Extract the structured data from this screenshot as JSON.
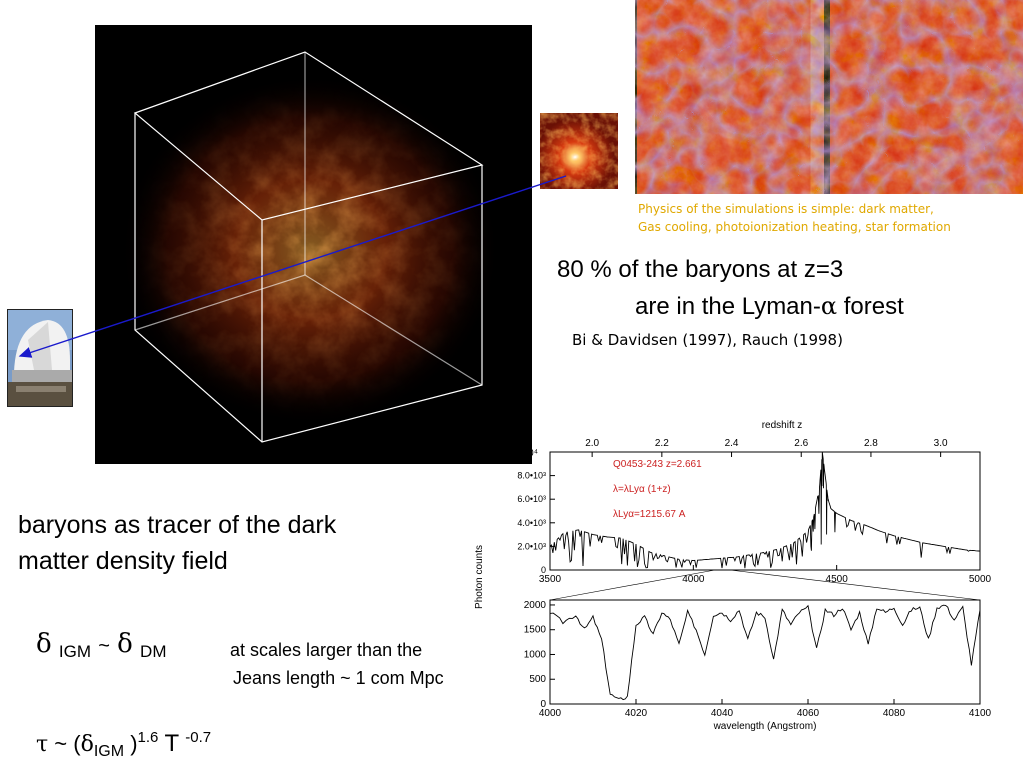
{
  "captions": {
    "simulation_caption_line1": "Physics of the simulations is simple: dark matter,",
    "simulation_caption_line2": "Gas cooling, photoionization heating, star formation",
    "baryons_line1": "80 % of the baryons at z=3",
    "baryons_line2_pre": "are in the Lyman-",
    "baryons_line2_alpha": "α",
    "baryons_line2_post": " forest",
    "reference": "Bi & Davidsen (1997), Rauch (1998)",
    "tracer_line1": "baryons as tracer of the dark",
    "tracer_line2": "matter density field",
    "scales_line1": "at scales larger than the",
    "scales_line2": "Jeans length ~ 1 com Mpc"
  },
  "equations": {
    "delta": "δ",
    "igm": "IGM",
    "tilde": "~",
    "dm": "DM",
    "tau": "τ",
    "tau_rel": "~ (",
    "close_paren": ")",
    "exp_16": "1.6",
    "T": "T",
    "exp_neg07": "-0.7"
  },
  "colors": {
    "accent_caption": "#e0a800",
    "arrow": "#1a1acc",
    "spectrum_red": "#cc2222"
  },
  "chart_data": [
    {
      "type": "line",
      "title": "",
      "top_axis_label": "redshift  z",
      "top_ticks": [
        "2.0",
        "2.2",
        "2.4",
        "2.6",
        "2.8",
        "3.0"
      ],
      "xlabel": "",
      "ylabel": "Photon counts",
      "x_ticks": [
        "3500",
        "4000",
        "4500",
        "5000"
      ],
      "y_ticks": [
        "0",
        "2.0•10³",
        "4.0•10³",
        "6.0•10³",
        "8.0•10³",
        "1.0•10⁴"
      ],
      "y_top_label": "10⁴",
      "xlim": [
        3500,
        5000
      ],
      "ylim": [
        0,
        10000
      ],
      "annotations": [
        "Q0453-243   z=2.661",
        "λ=λLyα (1+z)",
        "λLyα=1215.67 A"
      ],
      "series": [
        {
          "x": [
            3500,
            3550,
            3600,
            3650,
            3700,
            3750,
            3800,
            3850,
            3900,
            3950,
            4000,
            4050,
            4100,
            4150,
            4200,
            4250,
            4300,
            4350,
            4400,
            4420,
            4440,
            4450,
            4460,
            4470,
            4480,
            4500,
            4550,
            4600,
            4650,
            4700,
            4750,
            4800,
            4850,
            4900,
            4950,
            5000
          ],
          "values": [
            2000,
            3200,
            3400,
            3000,
            2800,
            2700,
            2200,
            1500,
            1200,
            900,
            800,
            900,
            1000,
            1100,
            1300,
            1500,
            1800,
            2300,
            3300,
            4500,
            7000,
            10000,
            8000,
            6000,
            5200,
            4800,
            4200,
            3800,
            3300,
            2900,
            2600,
            2300,
            2100,
            1900,
            1700,
            1600
          ]
        }
      ]
    },
    {
      "type": "line",
      "title": "",
      "xlabel": "wavelength (Angstrom)",
      "ylabel": "",
      "x_ticks": [
        "4000",
        "4020",
        "4040",
        "4060",
        "4080",
        "4100"
      ],
      "y_ticks": [
        "0",
        "500",
        "1000",
        "1500",
        "2000"
      ],
      "xlim": [
        4000,
        4100
      ],
      "ylim": [
        0,
        2100
      ],
      "series": [
        {
          "x": [
            4000,
            4003,
            4006,
            4008,
            4010,
            4012,
            4014,
            4016,
            4018,
            4020,
            4022,
            4024,
            4026,
            4028,
            4030,
            4032,
            4034,
            4036,
            4038,
            4040,
            4042,
            4044,
            4046,
            4048,
            4050,
            4052,
            4054,
            4056,
            4058,
            4060,
            4062,
            4064,
            4066,
            4068,
            4070,
            4072,
            4074,
            4076,
            4078,
            4080,
            4082,
            4084,
            4086,
            4088,
            4090,
            4092,
            4094,
            4096,
            4098,
            4100
          ],
          "values": [
            1850,
            1650,
            1800,
            1500,
            1750,
            1300,
            200,
            80,
            150,
            1600,
            1750,
            1400,
            1850,
            1700,
            1200,
            1850,
            1500,
            1000,
            1800,
            1850,
            1700,
            1900,
            1300,
            1850,
            1750,
            900,
            1900,
            1600,
            1850,
            1950,
            1100,
            1900,
            1800,
            1950,
            1500,
            1850,
            1200,
            1950,
            1850,
            1950,
            1600,
            1900,
            1950,
            1300,
            1950,
            2000,
            1700,
            1950,
            800,
            1900
          ]
        }
      ]
    }
  ]
}
